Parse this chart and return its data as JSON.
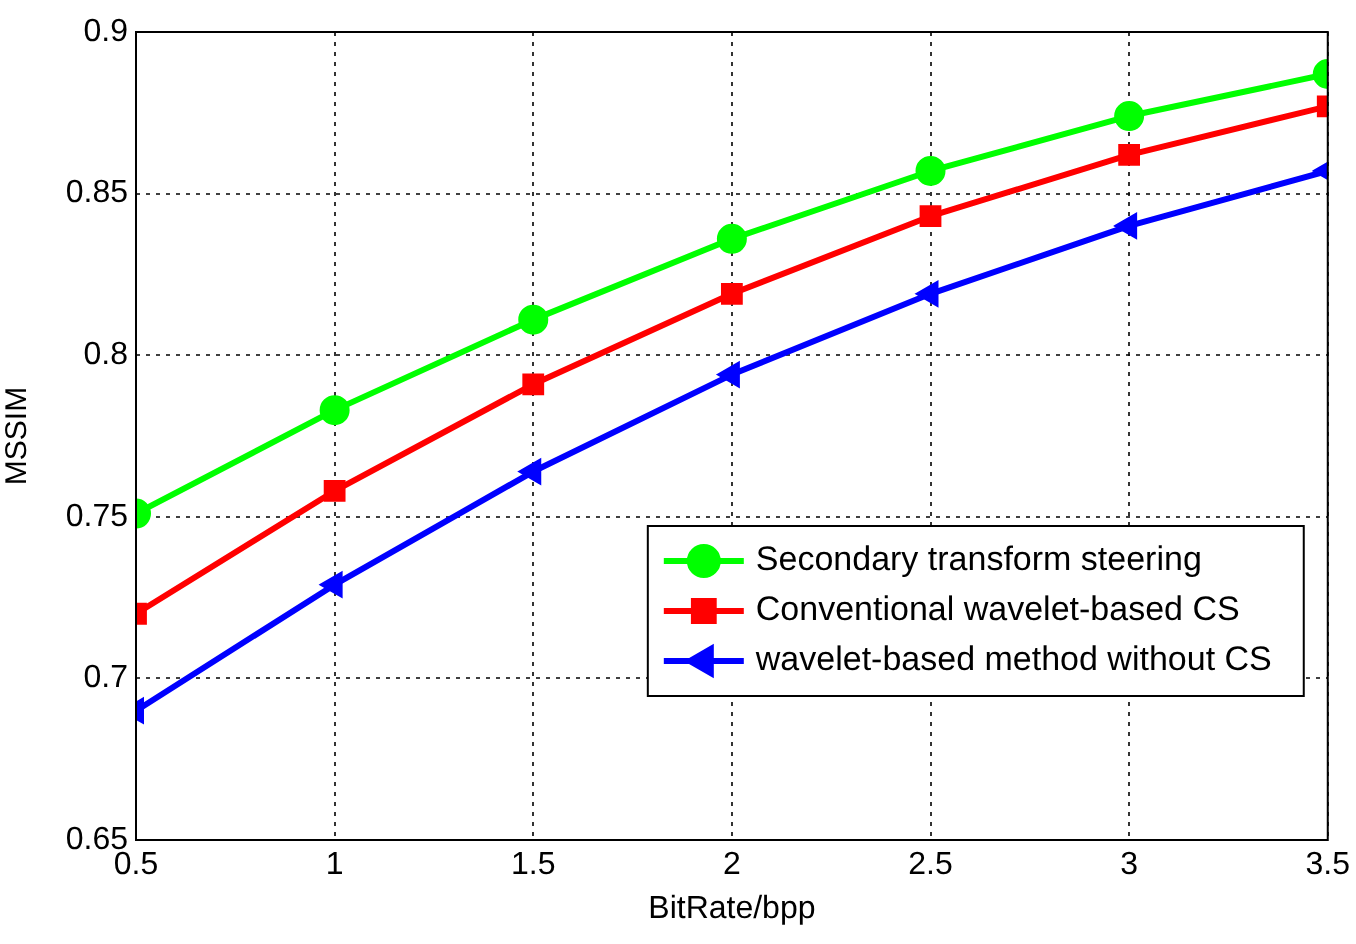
{
  "chart_data": {
    "type": "line",
    "xlabel": "BitRate/bpp",
    "ylabel": "MSSIM",
    "x": [
      0.5,
      1,
      1.5,
      2,
      2.5,
      3,
      3.5
    ],
    "series": [
      {
        "name": "Secondary transform steering",
        "color": "#00ff00",
        "marker": "circle",
        "values": [
          0.751,
          0.783,
          0.811,
          0.836,
          0.857,
          0.874,
          0.887
        ]
      },
      {
        "name": "Conventional wavelet-based CS",
        "color": "#ff0000",
        "marker": "square",
        "values": [
          0.72,
          0.758,
          0.791,
          0.819,
          0.843,
          0.862,
          0.877
        ]
      },
      {
        "name": "wavelet-based method without CS",
        "color": "#0000ff",
        "marker": "triangle",
        "values": [
          0.69,
          0.729,
          0.764,
          0.794,
          0.819,
          0.84,
          0.857
        ]
      }
    ],
    "xlim": [
      0.5,
      3.5
    ],
    "xticks": [
      0.5,
      1,
      1.5,
      2,
      2.5,
      3,
      3.5
    ],
    "ylim": [
      0.65,
      0.9
    ],
    "yticks": [
      0.65,
      0.7,
      0.75,
      0.8,
      0.85,
      0.9
    ],
    "grid": true,
    "legend": "bottom right",
    "line_style": "solid"
  }
}
